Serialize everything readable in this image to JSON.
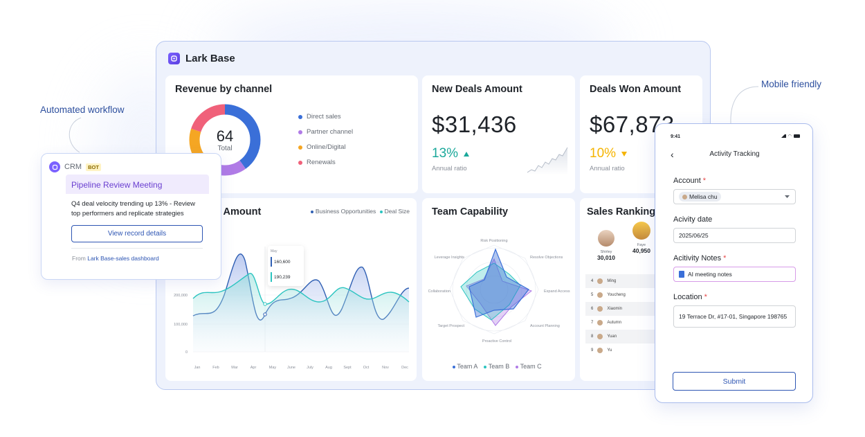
{
  "callouts": {
    "automated_workflow": "Automated workflow",
    "mobile_friendly": "Mobile friendly"
  },
  "brand": {
    "name": "Lark Base"
  },
  "revenue_card": {
    "title": "Revenue by channel",
    "total_value": "64",
    "total_label": "Total",
    "legend": [
      {
        "label": "Direct sales",
        "color": "#3a6fd8"
      },
      {
        "label": "Partner channel",
        "color": "#b07be6"
      },
      {
        "label": "Online/Digital",
        "color": "#f5a623"
      },
      {
        "label": "Renewals",
        "color": "#f0617a"
      }
    ]
  },
  "new_deals": {
    "title": "New Deals Amount",
    "amount": "$31,436",
    "change": "13%",
    "caption": "Annual ratio",
    "accent": "#1aa89a"
  },
  "deals_won": {
    "title": "Deals Won Amount",
    "amount": "$67,873",
    "change": "10%",
    "caption": "Annual ratio",
    "accent": "#f5b400"
  },
  "amount_card": {
    "title_partial": "s Amount",
    "legend": [
      {
        "label": "Business Opportunities",
        "color": "#2f5fb3"
      },
      {
        "label": "Deal Size",
        "color": "#2bc4c0"
      }
    ],
    "tooltip": {
      "month": "May",
      "v1": "160,600",
      "v2": "190,239"
    },
    "y_ticks": [
      "200,000",
      "100,000",
      "0"
    ],
    "x_ticks": [
      "Jan",
      "Feb",
      "Mar",
      "Apr",
      "May",
      "June",
      "July",
      "Aug",
      "Sept",
      "Oct",
      "Nov",
      "Dec"
    ]
  },
  "team_capability": {
    "title": "Team Capability",
    "axes": [
      "Risk Positioning",
      "Resolve Objections",
      "Expand Access",
      "Account Planning",
      "Proactive Control",
      "Target Prospect",
      "Collaboration",
      "Leverage Insights"
    ],
    "legend": [
      {
        "label": "Team A",
        "color": "#3a6fd8"
      },
      {
        "label": "Team B",
        "color": "#2bc4c0"
      },
      {
        "label": "Team C",
        "color": "#b07be6"
      }
    ]
  },
  "sales_ranking": {
    "title": "Sales Ranking",
    "top": [
      {
        "name": "Shirley",
        "value": "30,010"
      },
      {
        "name": "Faye",
        "value": "40,950"
      }
    ],
    "rows": [
      {
        "rank": "4",
        "name": "Ming"
      },
      {
        "rank": "5",
        "name": "Youcheng"
      },
      {
        "rank": "6",
        "name": "Xiaomin"
      },
      {
        "rank": "7",
        "name": "Autumn"
      },
      {
        "rank": "8",
        "name": "Yuan"
      },
      {
        "rank": "9",
        "name": "Yu"
      }
    ]
  },
  "bot_card": {
    "app": "CRM",
    "badge": "BOT",
    "title": "Pipeline Review Meeting",
    "body": "Q4 deal velocity trending up 13% - Review top performers and replicate strategies",
    "button": "View record details",
    "footer_prefix": "From",
    "footer_link": "Lark Base-sales dashboard"
  },
  "phone": {
    "time": "9:41",
    "title": "Activity Tracking",
    "account_label": "Account",
    "account_value": "Melisa chu",
    "date_label": "Acivity date",
    "date_value": "2025/06/25",
    "notes_label": "Acitivity Notes",
    "notes_value": "AI meeting notes",
    "location_label": "Location",
    "location_value": "19 Terrace Dr, #17-01, Singapore 198765",
    "submit": "Submit"
  }
}
